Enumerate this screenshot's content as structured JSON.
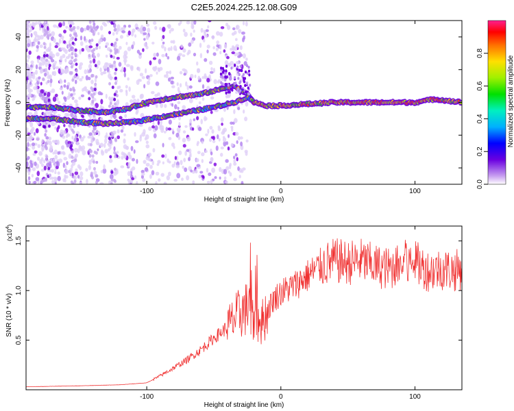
{
  "title": "C2E5.2024.225.12.08.G09",
  "chart_data": [
    {
      "type": "heatmap",
      "xlabel": "Height of straight line (km)",
      "ylabel": "Frequency (Hz)",
      "xlim": [
        -190,
        135
      ],
      "ylim": [
        -50,
        50
      ],
      "xticks": [
        -100,
        0,
        100
      ],
      "yticks": [
        -40,
        -20,
        0,
        20,
        40
      ],
      "colorbar": {
        "label": "Normalized spectral amplitude",
        "range": [
          0,
          1
        ],
        "ticks": [
          0.0,
          0.2,
          0.4,
          0.6,
          0.8
        ]
      },
      "traces": [
        {
          "name": "upper-branch",
          "points": [
            [
              -190,
              -3
            ],
            [
              -170,
              -3
            ],
            [
              -150,
              -5
            ],
            [
              -130,
              -6
            ],
            [
              -115,
              -4
            ],
            [
              -100,
              0
            ],
            [
              -80,
              3
            ],
            [
              -60,
              5
            ],
            [
              -45,
              8
            ],
            [
              -35,
              10
            ],
            [
              -25,
              5
            ],
            [
              -20,
              0
            ]
          ]
        },
        {
          "name": "lower-branch",
          "points": [
            [
              -190,
              -10
            ],
            [
              -170,
              -10
            ],
            [
              -150,
              -12
            ],
            [
              -130,
              -13
            ],
            [
              -110,
              -12
            ],
            [
              -90,
              -9
            ],
            [
              -70,
              -6
            ],
            [
              -50,
              -3
            ],
            [
              -35,
              0
            ],
            [
              -25,
              3
            ],
            [
              -20,
              1
            ]
          ]
        },
        {
          "name": "merged",
          "points": [
            [
              -20,
              0
            ],
            [
              -10,
              -2
            ],
            [
              0,
              -2
            ],
            [
              20,
              -1
            ],
            [
              40,
              0
            ],
            [
              60,
              0
            ],
            [
              80,
              0
            ],
            [
              100,
              0
            ],
            [
              115,
              2
            ],
            [
              125,
              1
            ],
            [
              135,
              0
            ]
          ]
        }
      ]
    },
    {
      "type": "line",
      "xlabel": "Height of straight line (km)",
      "ylabel": "SNR (10 * v/v)",
      "scale_label": "(x10",
      "scale_exp": "4",
      "scale_close": ")",
      "xlim": [
        -190,
        135
      ],
      "ylim": [
        0,
        1.65
      ],
      "xticks": [
        -100,
        0,
        100
      ],
      "yticks": [
        0.5,
        1.0,
        1.5
      ],
      "series": [
        {
          "name": "SNR",
          "color": "#f03030",
          "envelope": [
            [
              -190,
              0.03
            ],
            [
              -150,
              0.04
            ],
            [
              -120,
              0.05
            ],
            [
              -100,
              0.07
            ],
            [
              -90,
              0.14
            ],
            [
              -80,
              0.22
            ],
            [
              -70,
              0.3
            ],
            [
              -60,
              0.4
            ],
            [
              -50,
              0.52
            ],
            [
              -40,
              0.63
            ],
            [
              -30,
              0.78
            ],
            [
              -25,
              0.82
            ],
            [
              -20,
              0.72
            ],
            [
              -15,
              0.65
            ],
            [
              -10,
              0.8
            ],
            [
              -5,
              0.92
            ],
            [
              0,
              0.98
            ],
            [
              10,
              1.05
            ],
            [
              20,
              1.15
            ],
            [
              30,
              1.25
            ],
            [
              40,
              1.3
            ],
            [
              50,
              1.28
            ],
            [
              60,
              1.3
            ],
            [
              70,
              1.25
            ],
            [
              80,
              1.22
            ],
            [
              90,
              1.25
            ],
            [
              100,
              1.28
            ],
            [
              110,
              1.2
            ],
            [
              120,
              1.22
            ],
            [
              130,
              1.2
            ],
            [
              135,
              1.22
            ]
          ]
        }
      ]
    }
  ]
}
